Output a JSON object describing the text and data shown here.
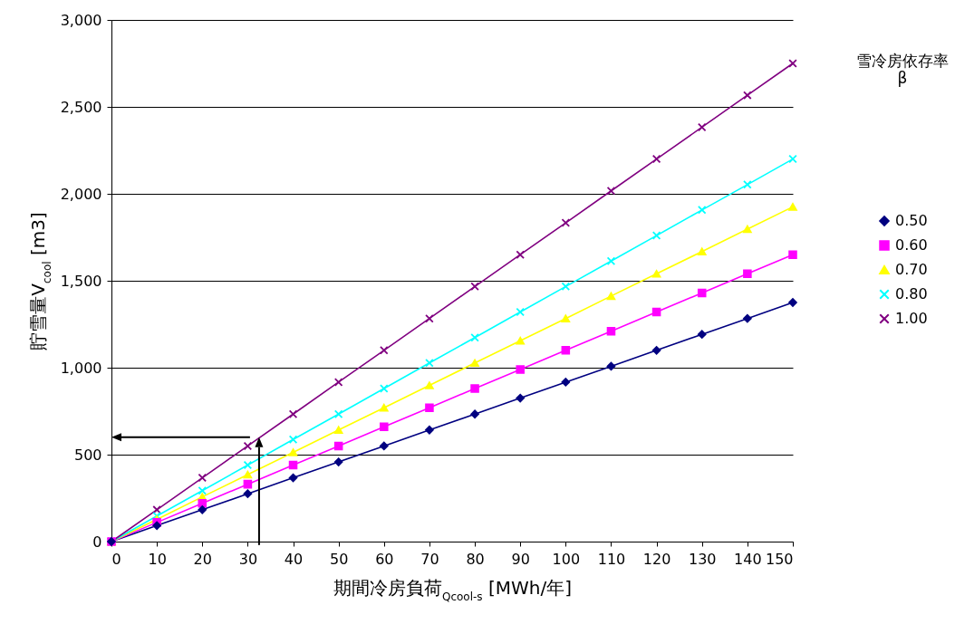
{
  "chart_data": {
    "type": "line",
    "xlabel": "期間冷房負荷$_{Qcool-s}$ [MWh/年]",
    "ylabel": "貯雪量V$_{cool}$ [m3]",
    "legend_title": "雪冷房依存率\nβ",
    "x": [
      0,
      10,
      20,
      30,
      40,
      50,
      60,
      70,
      80,
      90,
      100,
      110,
      120,
      130,
      140,
      150
    ],
    "series": [
      {
        "name": "0.50",
        "color": "#000080",
        "marker": "diamond",
        "values": [
          0,
          92,
          183,
          275,
          367,
          458,
          550,
          642,
          733,
          825,
          917,
          1008,
          1100,
          1192,
          1283,
          1375
        ]
      },
      {
        "name": "0.60",
        "color": "#ff00ff",
        "marker": "square",
        "values": [
          0,
          110,
          220,
          330,
          440,
          550,
          660,
          770,
          880,
          990,
          1100,
          1210,
          1320,
          1430,
          1540,
          1650
        ]
      },
      {
        "name": "0.70",
        "color": "#ffff00",
        "marker": "triangle",
        "values": [
          0,
          128,
          257,
          385,
          513,
          642,
          770,
          898,
          1027,
          1155,
          1283,
          1412,
          1540,
          1668,
          1797,
          1925
        ]
      },
      {
        "name": "0.80",
        "color": "#00ffff",
        "marker": "cross",
        "values": [
          0,
          147,
          293,
          440,
          587,
          733,
          880,
          1027,
          1173,
          1320,
          1467,
          1613,
          1760,
          1907,
          2053,
          2200
        ]
      },
      {
        "name": "1.00",
        "color": "#800080",
        "marker": "cross",
        "values": [
          0,
          183,
          367,
          550,
          733,
          917,
          1100,
          1283,
          1467,
          1650,
          1833,
          2017,
          2200,
          2383,
          2567,
          2750
        ]
      }
    ],
    "xlim": [
      0,
      150
    ],
    "xticks": [
      0,
      10,
      20,
      30,
      40,
      50,
      60,
      70,
      80,
      90,
      100,
      110,
      120,
      130,
      140,
      150
    ],
    "ylim": [
      0,
      3000
    ],
    "yticks": [
      {
        "value": 0,
        "label": "0"
      },
      {
        "value": 500,
        "label": "500"
      },
      {
        "value": 1000,
        "label": "1,000"
      },
      {
        "value": 1500,
        "label": "1,500"
      },
      {
        "value": 2000,
        "label": "2,000"
      },
      {
        "value": 2500,
        "label": "2,500"
      },
      {
        "value": 3000,
        "label": "3,000"
      }
    ],
    "grid": "y",
    "legend": "right",
    "line_style": "solid"
  }
}
